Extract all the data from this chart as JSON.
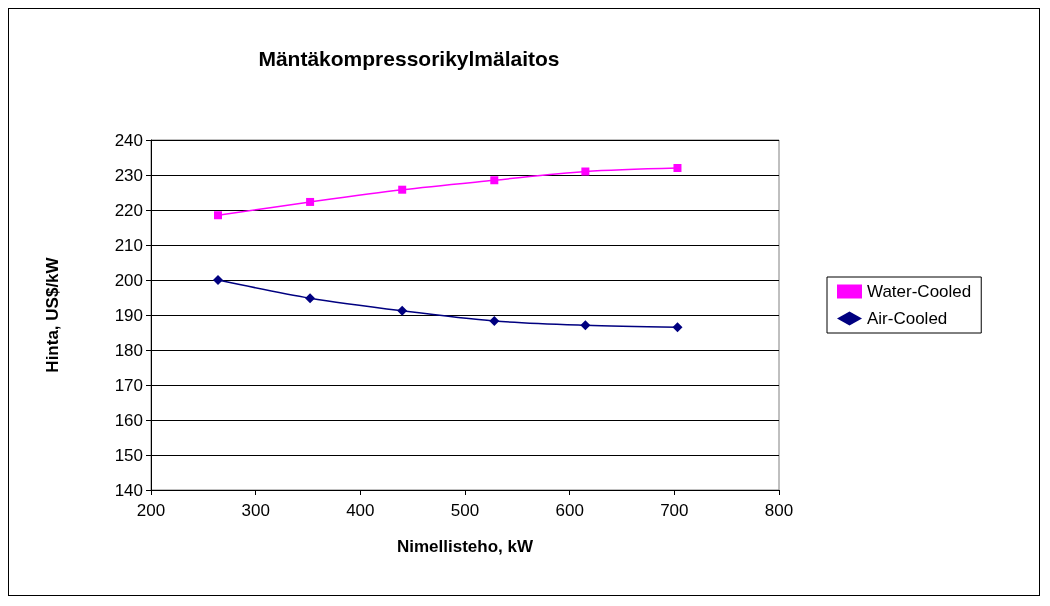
{
  "chart_data": {
    "type": "line",
    "title": "Mäntäkompressorikylmälaitos",
    "xlabel": "Nimellisteho, kW",
    "ylabel": "Hinta, US$/kW",
    "x": [
      264,
      352,
      440,
      528,
      615,
      703
    ],
    "series": [
      {
        "name": "Water-Cooled",
        "color": "#ff00ff",
        "marker": "square",
        "values": [
          218.5,
          222.3,
          225.8,
          228.5,
          231,
          232
        ]
      },
      {
        "name": "Air-Cooled",
        "color": "#000080",
        "marker": "diamond",
        "values": [
          200,
          194.8,
          191.2,
          188.3,
          187.1,
          186.5
        ]
      }
    ],
    "xlim": [
      200,
      800
    ],
    "xticks": [
      200,
      300,
      400,
      500,
      600,
      700,
      800
    ],
    "ylim": [
      140,
      240
    ],
    "yticks": [
      140,
      150,
      160,
      170,
      180,
      190,
      200,
      210,
      220,
      230,
      240
    ],
    "grid": "y",
    "legend": "right",
    "line_style": "solid"
  }
}
